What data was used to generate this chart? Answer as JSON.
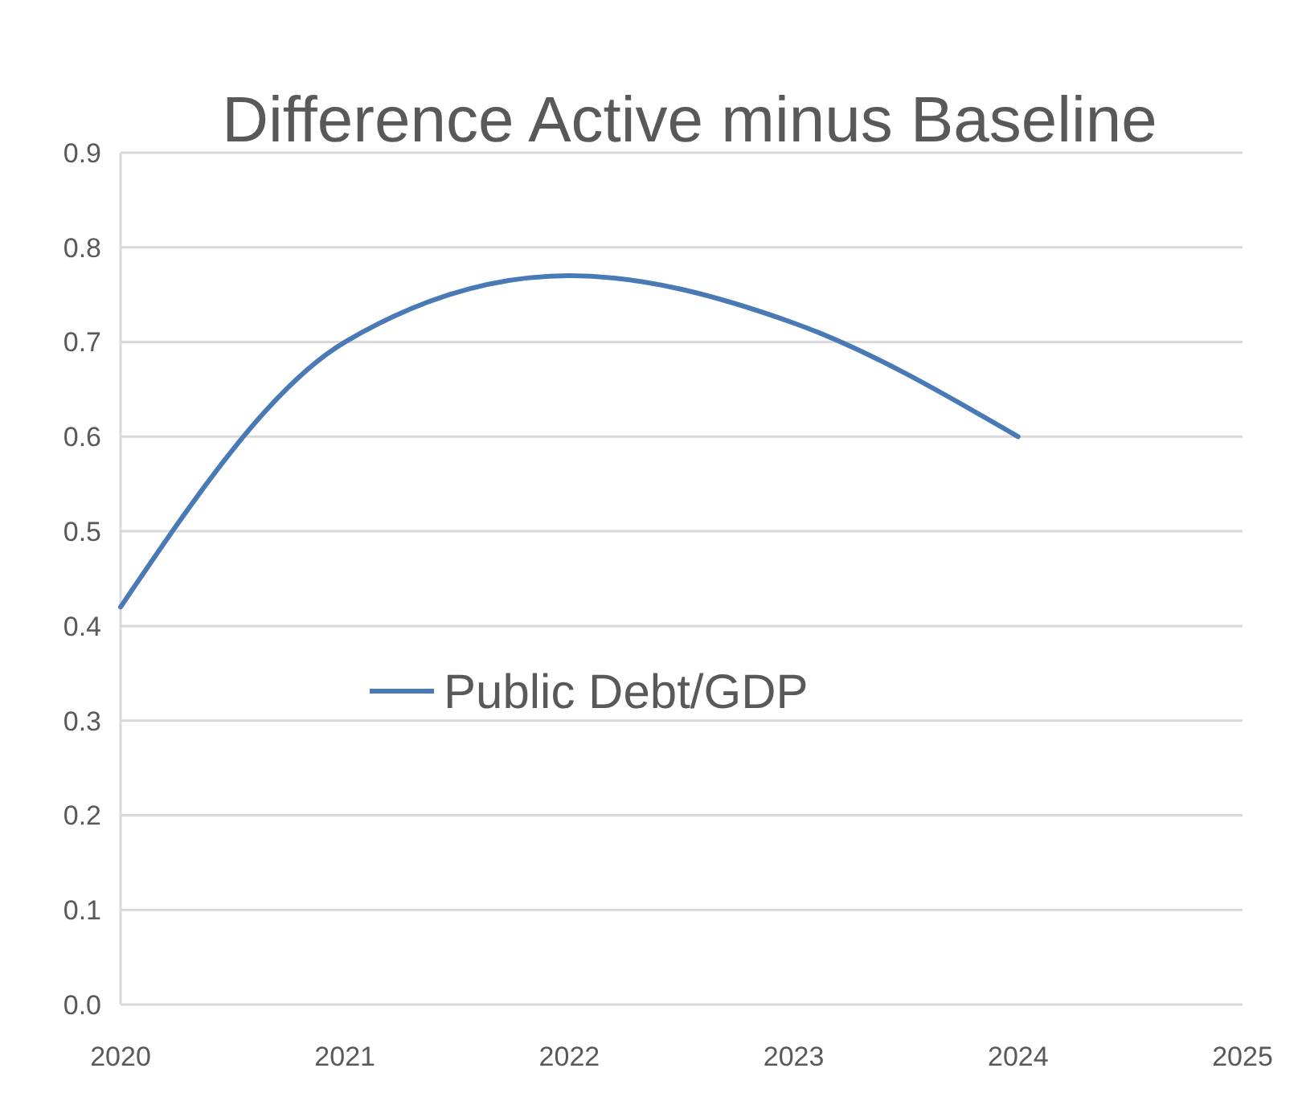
{
  "chart_data": {
    "type": "line",
    "title": "Difference Active minus Baseline",
    "x": [
      2020,
      2021,
      2022,
      2023,
      2024
    ],
    "series": [
      {
        "name": "Public Debt/GDP",
        "color": "#4a7ab5",
        "values": [
          0.42,
          0.7,
          0.77,
          0.72,
          0.6
        ]
      }
    ],
    "xlim": [
      2020,
      2025
    ],
    "xticks": [
      2020,
      2021,
      2022,
      2023,
      2024,
      2025
    ],
    "ylim": [
      0,
      0.9
    ],
    "yticks": [
      {
        "value": 0,
        "label": "0.0"
      },
      0.1,
      0.2,
      0.3,
      0.4,
      0.5,
      0.6,
      0.7,
      0.8,
      0.9
    ],
    "grid": "y",
    "legend": "left",
    "marker": "none",
    "line_style": "solid"
  }
}
